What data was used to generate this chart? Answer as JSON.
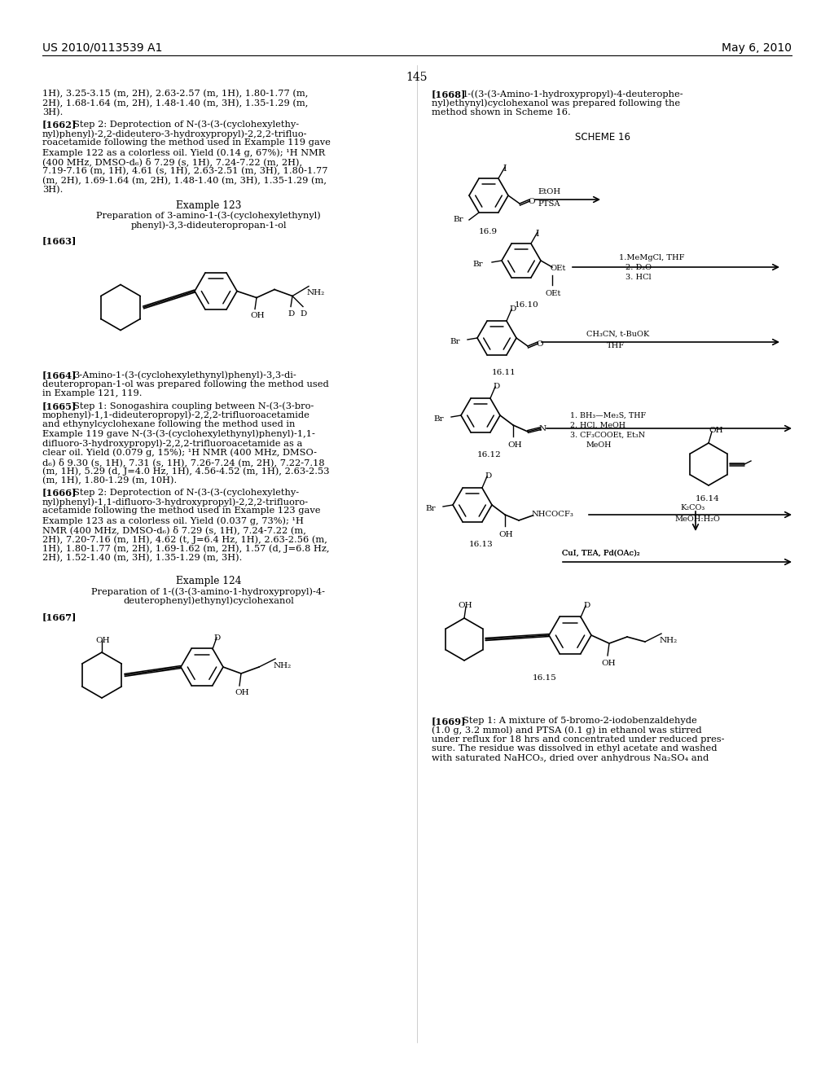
{
  "page_header_left": "US 2010/0113539 A1",
  "page_header_right": "May 6, 2010",
  "page_number": "145",
  "background_color": "#ffffff",
  "text_color": "#000000",
  "figsize": [
    10.24,
    13.2
  ],
  "dpi": 100
}
